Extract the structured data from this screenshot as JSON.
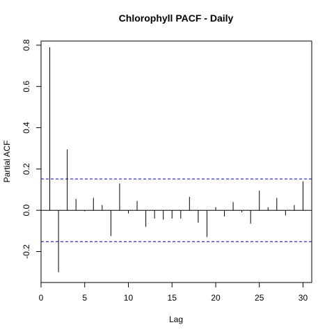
{
  "chart_data": {
    "type": "bar",
    "title": "Chlorophyll PACF - Daily",
    "xlabel": "Lag",
    "ylabel": "Partial ACF",
    "xlim": [
      0,
      31
    ],
    "ylim": [
      -0.35,
      0.82
    ],
    "x_ticks": [
      0,
      5,
      10,
      15,
      20,
      25,
      30
    ],
    "y_ticks": [
      -0.2,
      0.0,
      0.2,
      0.4,
      0.6,
      0.8
    ],
    "y_tick_labels": [
      "-0.2",
      "0.0",
      "0.2",
      "0.4",
      "0.6",
      "0.8"
    ],
    "x": [
      1,
      2,
      3,
      4,
      5,
      6,
      7,
      8,
      9,
      10,
      11,
      12,
      13,
      14,
      15,
      16,
      17,
      18,
      19,
      20,
      21,
      22,
      23,
      24,
      25,
      26,
      27,
      28,
      29,
      30
    ],
    "values": [
      0.79,
      -0.3,
      0.295,
      0.055,
      -0.005,
      0.06,
      0.025,
      -0.125,
      0.13,
      -0.015,
      0.045,
      -0.08,
      -0.04,
      -0.045,
      -0.04,
      -0.04,
      0.065,
      -0.06,
      -0.13,
      0.015,
      -0.03,
      0.04,
      -0.01,
      -0.065,
      0.095,
      0.015,
      0.06,
      -0.025,
      0.025,
      0.14
    ],
    "confidence_bounds": [
      0.152,
      -0.152
    ],
    "colors": {
      "bars": "#000000",
      "bounds": "#0000cc",
      "axes": "#000000"
    }
  }
}
